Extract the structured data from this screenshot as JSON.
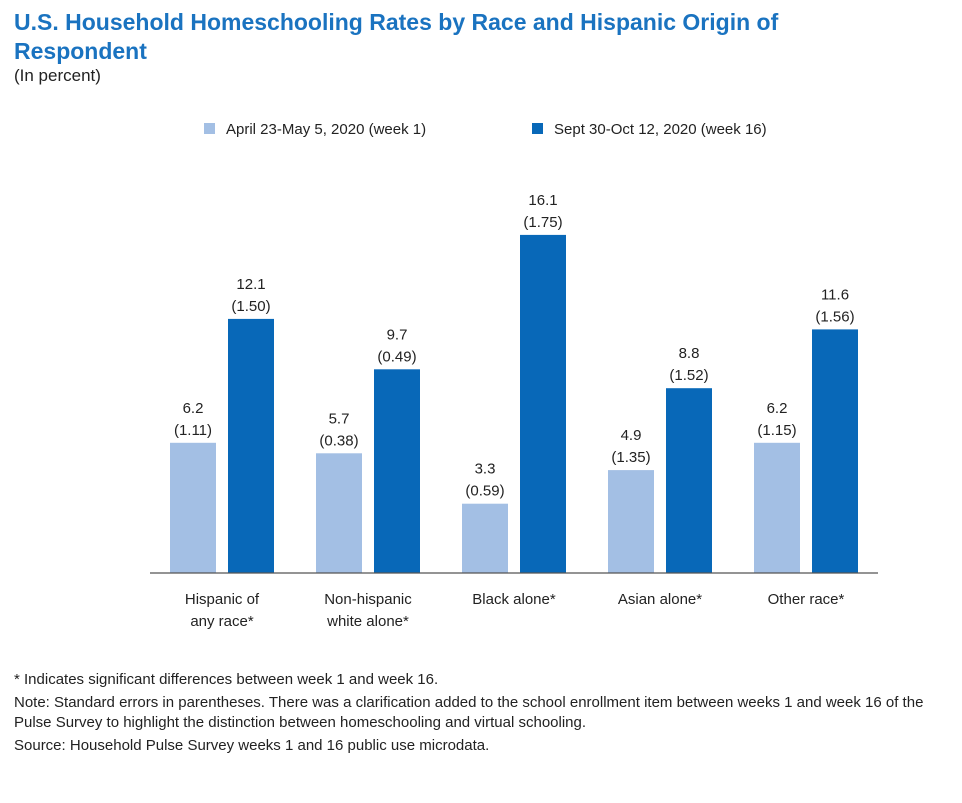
{
  "chart_data": {
    "type": "bar",
    "title": "U.S. Household Homeschooling Rates by Race and Hispanic Origin of Respondent",
    "subtitle": "(In percent)",
    "categories": [
      [
        "Hispanic of",
        "any race*"
      ],
      [
        "Non-hispanic",
        "white alone*"
      ],
      [
        "Black alone*"
      ],
      [
        "Asian alone*"
      ],
      [
        "Other race*"
      ]
    ],
    "series": [
      {
        "name": "April 23-May 5, 2020 (week 1)",
        "color": "#a3bfe4",
        "values": [
          6.2,
          5.7,
          3.3,
          4.9,
          6.2
        ],
        "errors": [
          "(1.11)",
          "(0.38)",
          "(0.59)",
          "(1.35)",
          "(1.15)"
        ]
      },
      {
        "name": "Sept 30-Oct 12, 2020 (week 16)",
        "color": "#0868b8",
        "values": [
          12.1,
          9.7,
          16.1,
          8.8,
          11.6
        ],
        "errors": [
          "(1.50)",
          "(0.49)",
          "(1.75)",
          "(1.52)",
          "(1.56)"
        ]
      }
    ],
    "ylim": [
      0,
      18
    ],
    "grid": false,
    "legend": "top"
  },
  "notes": [
    "* Indicates significant differences between week 1 and week 16.",
    "Note: Standard errors in parentheses. There was a clarification added to the school enrollment item between weeks 1 and week 16 of the Pulse Survey to highlight the distinction between homeschooling and virtual schooling.",
    "Source: Household Pulse Survey weeks 1 and 16 public use microdata."
  ]
}
